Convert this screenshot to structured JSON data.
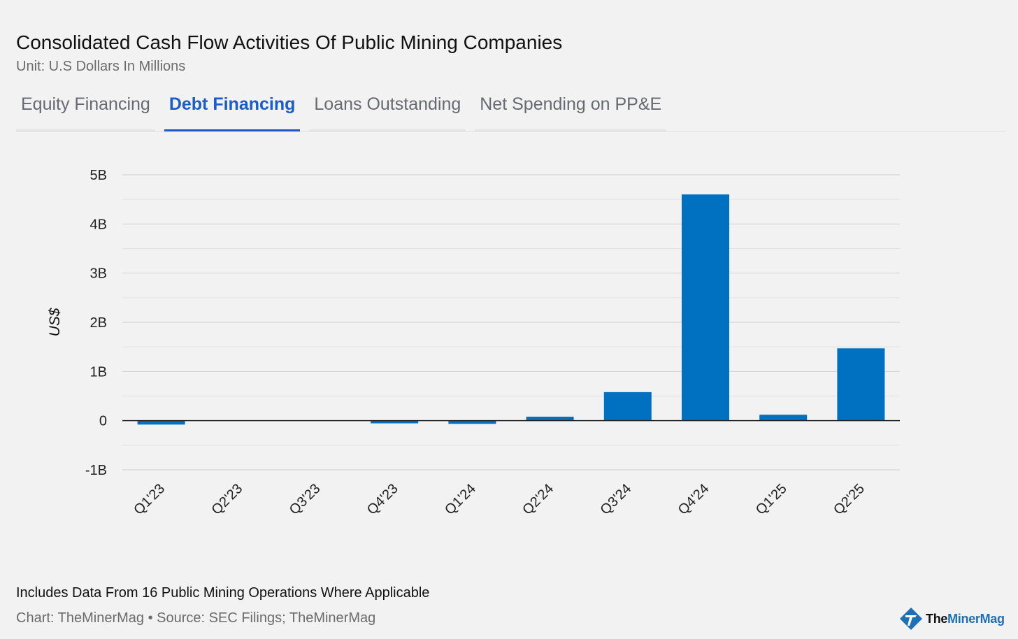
{
  "header": {
    "title": "Consolidated Cash Flow Activities Of Public Mining Companies",
    "subtitle": "Unit: U.S Dollars In Millions"
  },
  "tabs": [
    {
      "label": "Equity Financing",
      "active": false
    },
    {
      "label": "Debt Financing",
      "active": true
    },
    {
      "label": "Loans Outstanding",
      "active": false
    },
    {
      "label": "Net Spending on PP&E",
      "active": false
    }
  ],
  "chart_data": {
    "type": "bar",
    "title": "",
    "xlabel": "",
    "ylabel": "US$",
    "categories": [
      "Q1'23",
      "Q2'23",
      "Q3'23",
      "Q4'23",
      "Q1'24",
      "Q2'24",
      "Q3'24",
      "Q4'24",
      "Q1'25",
      "Q2'25"
    ],
    "values": [
      -80,
      0,
      0,
      -55,
      -65,
      80,
      580,
      4600,
      120,
      1470
    ],
    "ylim": [
      -1000,
      5000
    ],
    "yticks": [
      -1000,
      0,
      1000,
      2000,
      3000,
      4000,
      5000
    ],
    "ytick_labels": [
      "-1B",
      "0",
      "1B",
      "2B",
      "3B",
      "4B",
      "5B"
    ],
    "grid": true,
    "bar_color": "#0070c0"
  },
  "footer": {
    "note": "Includes Data From 16 Public Mining Operations Where Applicable",
    "source": "Chart: TheMinerMag • Source: SEC Filings; TheMinerMag"
  },
  "logo": {
    "part1": "The",
    "part2": "MinerMag",
    "icon": "minermag-logo-icon",
    "color": "#1f6fb5"
  }
}
